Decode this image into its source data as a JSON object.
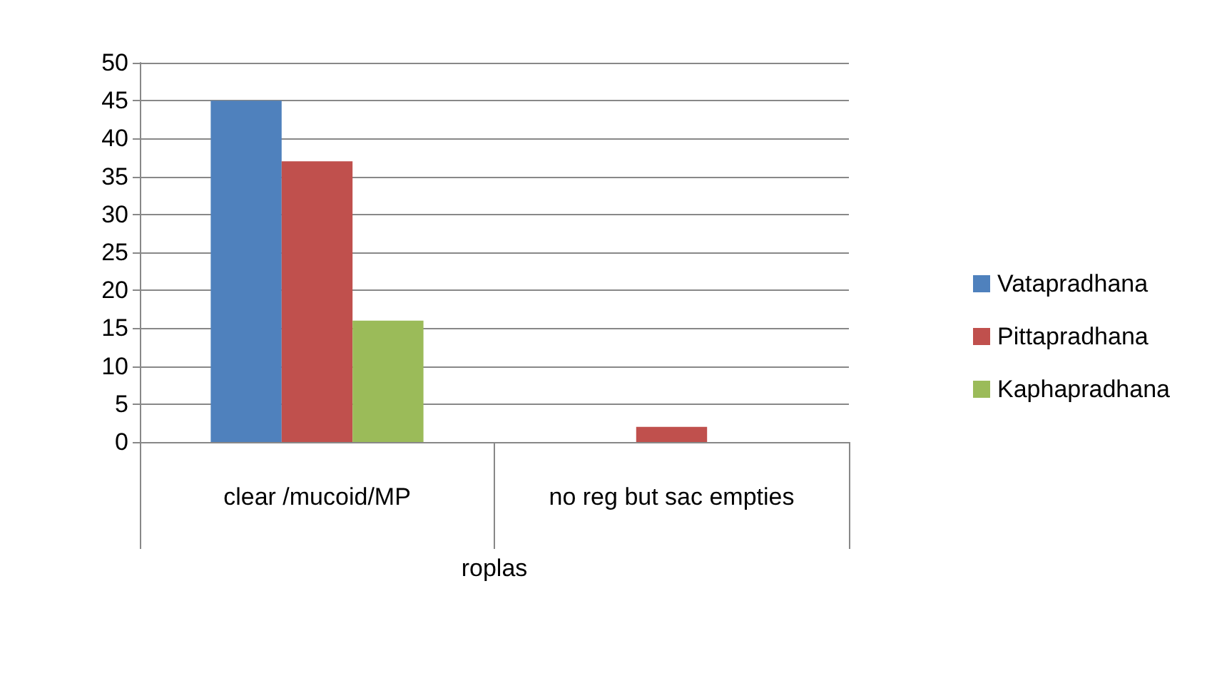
{
  "chart_data": {
    "type": "bar",
    "xlabel": "roplas",
    "categories": [
      "clear /mucoid/MP",
      "no reg but sac empties"
    ],
    "series": [
      {
        "name": "Vatapradhana",
        "color": "#4f81bd",
        "values": [
          45,
          0
        ]
      },
      {
        "name": "Pittapradhana",
        "color": "#c0504d",
        "values": [
          37,
          2
        ]
      },
      {
        "name": "Kaphapradhana",
        "color": "#9bbb59",
        "values": [
          16,
          0
        ]
      }
    ],
    "ylim": [
      0,
      50
    ],
    "yticks": [
      0,
      5,
      10,
      15,
      20,
      25,
      30,
      35,
      40,
      45,
      50
    ],
    "grid": "y",
    "legend": "right"
  }
}
